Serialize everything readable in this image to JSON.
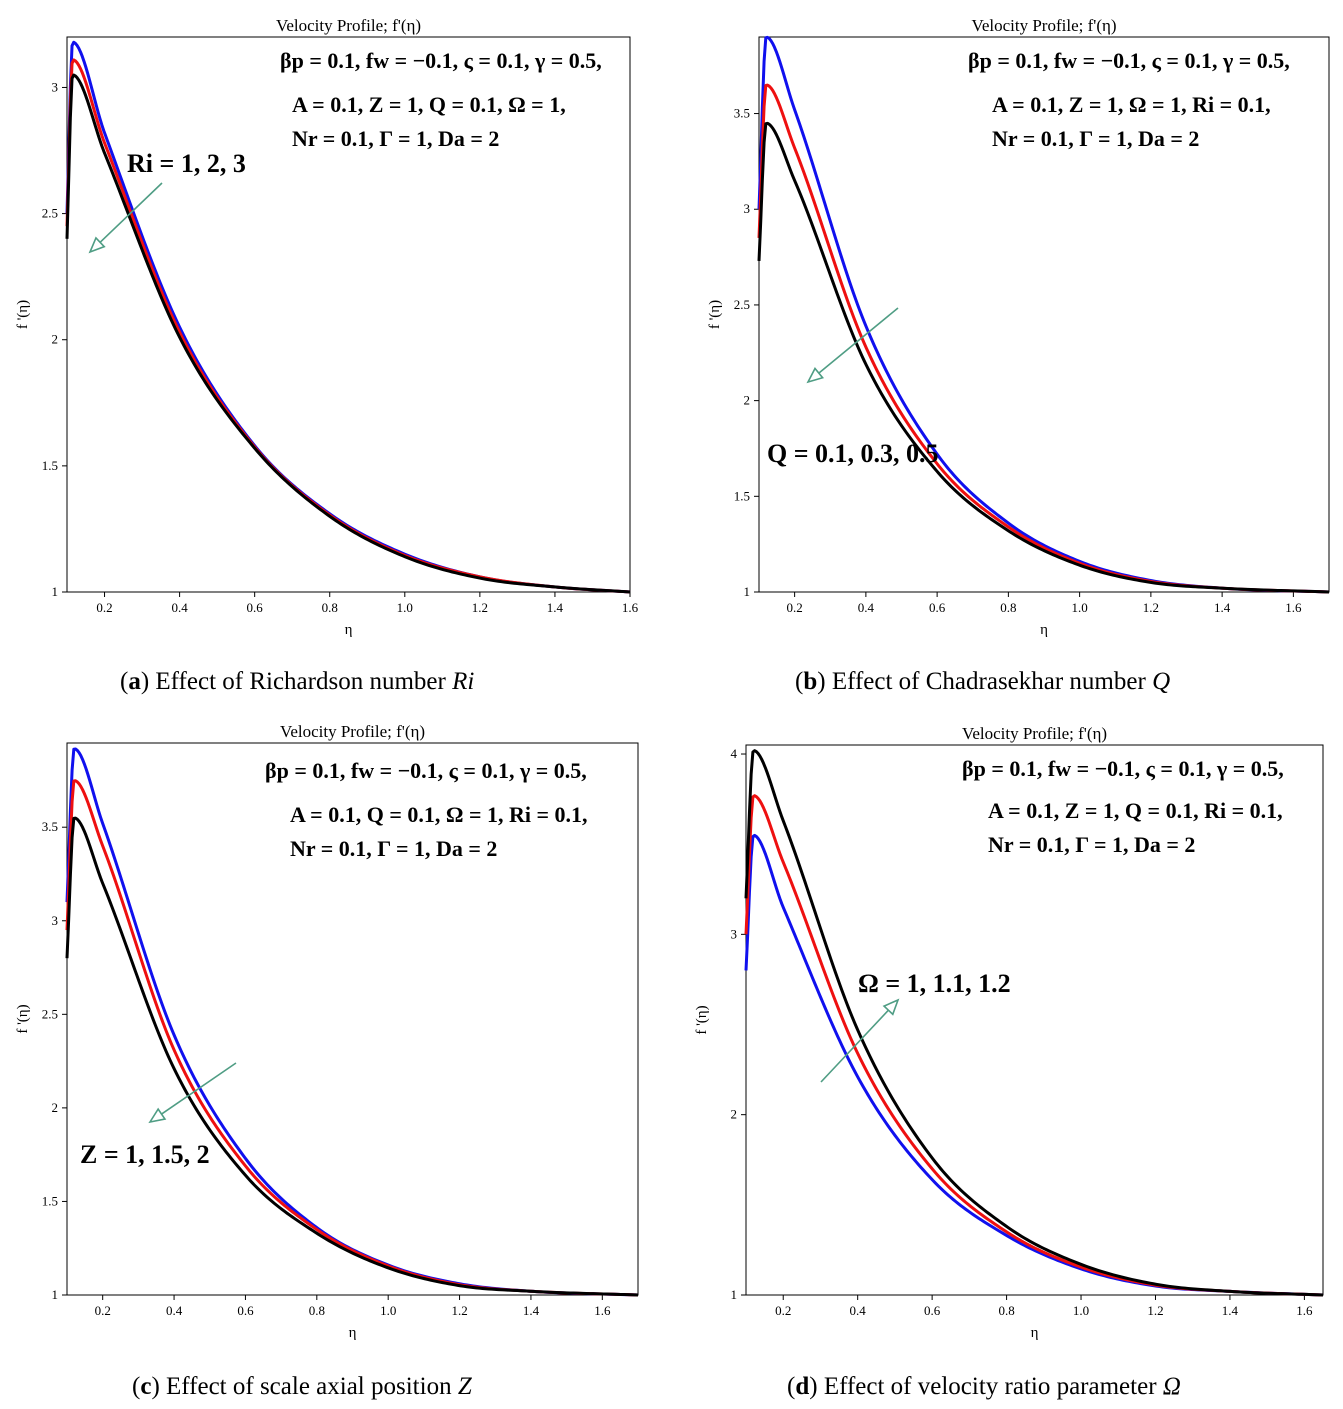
{
  "colors": {
    "blue": "#1010ee",
    "red": "#ee1010",
    "black": "#000000",
    "arrow": "#4f9d84"
  },
  "captions": [
    {
      "label": "a",
      "text": " Effect of Richardson number ",
      "symbol": "Ri"
    },
    {
      "label": "b",
      "text": " Effect of Chadrasekhar number ",
      "symbol": "Q"
    },
    {
      "label": "c",
      "text": " Effect of scale axial position ",
      "symbol": "Z"
    },
    {
      "label": "d",
      "text": " Effect of velocity ratio parameter ",
      "symbol": "Ω"
    }
  ],
  "chart_data": [
    {
      "type": "line",
      "panel": "a",
      "title": "Velocity Profile; f'(η)",
      "xlabel": "η",
      "ylabel": "f '(η)",
      "xlim": [
        0.1,
        1.6
      ],
      "ylim": [
        1,
        3.2
      ],
      "xticks": [
        "0.2",
        "0.4",
        "0.6",
        "0.8",
        "1.0",
        "1.2",
        "1.4",
        "1.6"
      ],
      "yticks": [
        "1",
        "1.5",
        "2",
        "2.5",
        "3"
      ],
      "annotation_lines": [
        "βp = 0.1, fw = −0.1, ς = 0.1, γ = 0.5,",
        "A = 0.1, Z = 1, Q = 0.1, Ω = 1,",
        "Nr = 0.1, Γ = 1, Da = 2"
      ],
      "param_label": "Ri = 1, 2, 3",
      "series": [
        {
          "color": "blue",
          "x": [
            0.1,
            0.115,
            0.2,
            0.4,
            0.6,
            0.8,
            1.0,
            1.2,
            1.4,
            1.6
          ],
          "y": [
            2.5,
            3.18,
            2.82,
            2.05,
            1.58,
            1.31,
            1.15,
            1.06,
            1.02,
            1.0
          ]
        },
        {
          "color": "red",
          "x": [
            0.1,
            0.115,
            0.2,
            0.4,
            0.6,
            0.8,
            1.0,
            1.2,
            1.4,
            1.6
          ],
          "y": [
            2.45,
            3.11,
            2.78,
            2.03,
            1.575,
            1.305,
            1.145,
            1.06,
            1.02,
            1.0
          ]
        },
        {
          "color": "black",
          "x": [
            0.1,
            0.115,
            0.2,
            0.4,
            0.6,
            0.8,
            1.0,
            1.2,
            1.4,
            1.6
          ],
          "y": [
            2.4,
            3.05,
            2.74,
            2.01,
            1.57,
            1.3,
            1.14,
            1.055,
            1.02,
            1.0
          ]
        }
      ]
    },
    {
      "type": "line",
      "panel": "b",
      "title": "Velocity Profile; f'(η)",
      "xlabel": "η",
      "ylabel": "f '(η)",
      "xlim": [
        0.1,
        1.7
      ],
      "ylim": [
        1,
        3.9
      ],
      "xticks": [
        "0.2",
        "0.4",
        "0.6",
        "0.8",
        "1.0",
        "1.2",
        "1.4",
        "1.6"
      ],
      "yticks": [
        "1",
        "1.5",
        "2",
        "2.5",
        "3",
        "3.5"
      ],
      "annotation_lines": [
        "βp = 0.1, fw = −0.1, ς = 0.1, γ = 0.5,",
        "A = 0.1, Z = 1, Ω = 1, Ri = 0.1,",
        "Nr = 0.1, Γ = 1, Da = 2"
      ],
      "param_label": "Q = 0.1, 0.3, 0.5",
      "series": [
        {
          "color": "blue",
          "x": [
            0.1,
            0.12,
            0.2,
            0.4,
            0.6,
            0.8,
            1.0,
            1.2,
            1.4,
            1.7
          ],
          "y": [
            3.0,
            3.9,
            3.52,
            2.39,
            1.72,
            1.36,
            1.16,
            1.06,
            1.02,
            1.0
          ]
        },
        {
          "color": "red",
          "x": [
            0.1,
            0.12,
            0.2,
            0.4,
            0.6,
            0.8,
            1.0,
            1.2,
            1.4,
            1.7
          ],
          "y": [
            2.85,
            3.65,
            3.32,
            2.28,
            1.67,
            1.34,
            1.15,
            1.055,
            1.02,
            1.0
          ]
        },
        {
          "color": "black",
          "x": [
            0.1,
            0.12,
            0.2,
            0.4,
            0.6,
            0.8,
            1.0,
            1.2,
            1.4,
            1.7
          ],
          "y": [
            2.73,
            3.45,
            3.15,
            2.19,
            1.63,
            1.32,
            1.14,
            1.05,
            1.02,
            1.0
          ]
        }
      ]
    },
    {
      "type": "line",
      "panel": "c",
      "title": "Velocity Profile; f'(η)",
      "xlabel": "η",
      "ylabel": "f '(η)",
      "xlim": [
        0.1,
        1.7
      ],
      "ylim": [
        1,
        3.95
      ],
      "xticks": [
        "0.2",
        "0.4",
        "0.6",
        "0.8",
        "1.0",
        "1.2",
        "1.4",
        "1.6"
      ],
      "yticks": [
        "1",
        "1.5",
        "2",
        "2.5",
        "3",
        "3.5"
      ],
      "annotation_lines": [
        "βp = 0.1, fw = −0.1, ς = 0.1, γ = 0.5,",
        "A = 0.1, Q = 0.1, Ω = 1, Ri = 0.1,",
        "Nr = 0.1, Γ = 1, Da = 2"
      ],
      "param_label": "Z = 1, 1.5, 2",
      "series": [
        {
          "color": "blue",
          "x": [
            0.1,
            0.12,
            0.2,
            0.4,
            0.6,
            0.8,
            1.0,
            1.2,
            1.4,
            1.7
          ],
          "y": [
            3.1,
            3.92,
            3.52,
            2.39,
            1.73,
            1.36,
            1.16,
            1.06,
            1.02,
            1.0
          ]
        },
        {
          "color": "red",
          "x": [
            0.1,
            0.12,
            0.2,
            0.4,
            0.6,
            0.8,
            1.0,
            1.2,
            1.4,
            1.7
          ],
          "y": [
            2.95,
            3.75,
            3.4,
            2.31,
            1.69,
            1.35,
            1.155,
            1.055,
            1.02,
            1.0
          ]
        },
        {
          "color": "black",
          "x": [
            0.1,
            0.12,
            0.2,
            0.4,
            0.6,
            0.8,
            1.0,
            1.2,
            1.4,
            1.7
          ],
          "y": [
            2.8,
            3.55,
            3.2,
            2.21,
            1.64,
            1.33,
            1.145,
            1.05,
            1.02,
            1.0
          ]
        }
      ]
    },
    {
      "type": "line",
      "panel": "d",
      "title": "Velocity Profile; f'(η)",
      "xlabel": "η",
      "ylabel": "f '(η)",
      "xlim": [
        0.1,
        1.65
      ],
      "ylim": [
        1,
        4.05
      ],
      "xticks": [
        "0.2",
        "0.4",
        "0.6",
        "0.8",
        "1.0",
        "1.2",
        "1.4",
        "1.6"
      ],
      "yticks": [
        "1",
        "2",
        "3",
        "4"
      ],
      "annotation_lines": [
        "βp = 0.1, fw = −0.1, ς = 0.1, γ = 0.5,",
        "A = 0.1, Z = 1, Q = 0.1, Ri = 0.1,",
        "Nr = 0.1, Γ = 1, Da = 2"
      ],
      "param_label": "Ω = 1, 1.1, 1.2",
      "series": [
        {
          "color": "blue",
          "x": [
            0.1,
            0.12,
            0.2,
            0.4,
            0.6,
            0.8,
            1.0,
            1.2,
            1.4,
            1.65
          ],
          "y": [
            2.8,
            3.55,
            3.15,
            2.21,
            1.64,
            1.33,
            1.145,
            1.05,
            1.02,
            1.0
          ]
        },
        {
          "color": "red",
          "x": [
            0.1,
            0.12,
            0.2,
            0.4,
            0.6,
            0.8,
            1.0,
            1.2,
            1.4,
            1.65
          ],
          "y": [
            3.0,
            3.77,
            3.4,
            2.34,
            1.7,
            1.35,
            1.155,
            1.055,
            1.02,
            1.0
          ]
        },
        {
          "color": "black",
          "x": [
            0.1,
            0.12,
            0.2,
            0.4,
            0.6,
            0.8,
            1.0,
            1.2,
            1.4,
            1.65
          ],
          "y": [
            3.2,
            4.02,
            3.63,
            2.47,
            1.76,
            1.38,
            1.17,
            1.06,
            1.02,
            1.0
          ]
        }
      ]
    }
  ]
}
